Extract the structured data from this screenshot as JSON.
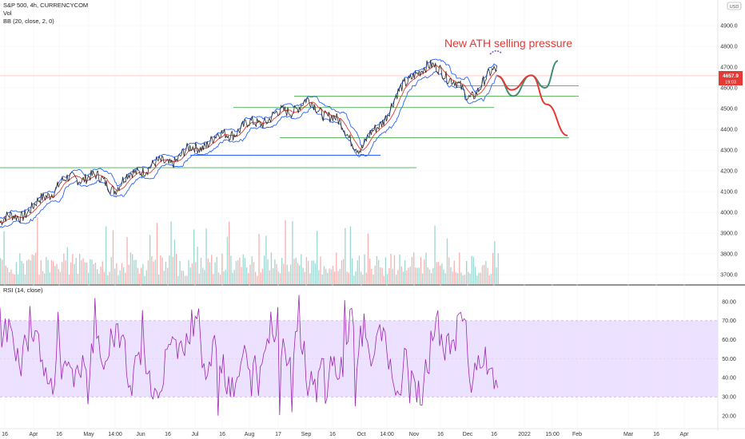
{
  "header": {
    "symbol_line": "S&P 500, 4h, CURRENCYCOM",
    "vol_label": "Vol",
    "bb_label": "BB (20, close, 2, 0)",
    "rsi_label": "RSI (14, close)",
    "scale_button": "USD"
  },
  "colors": {
    "price": "#2a2a2a",
    "bb_band": "#2962ff",
    "bb_basis": "#e53935",
    "support_line": "#4caf50",
    "support_blue": "#2962ff",
    "annotation": "#e53935",
    "proj_green": "#3e8e6e",
    "proj_red": "#e53935",
    "rsi_line": "#9c27b0",
    "rsi_band": "#e9dcff",
    "vol_up": "#26a69a",
    "vol_down": "#ef5350",
    "price_tag": "#e53935",
    "horizon_line": "#f7b5b5"
  },
  "chart_data": [
    {
      "type": "line",
      "title": "S&P 500, 4h, CURRENCYCOM",
      "ylim": [
        3650,
        5000
      ],
      "y_ticks": [
        "4900.0",
        "4800.0",
        "4700.0",
        "4600.0",
        "4500.0",
        "4400.0",
        "4300.0",
        "4200.0",
        "4100.0",
        "4000.0",
        "3900.0",
        "3800.0",
        "3700.0"
      ],
      "x_ticks": [
        "16",
        "Apr",
        "16",
        "May",
        "14:00",
        "Jun",
        "16",
        "Jul",
        "16",
        "Aug",
        "17",
        "Sep",
        "16",
        "Oct",
        "14:00",
        "Nov",
        "16",
        "Dec",
        "16",
        "2022",
        "15:00",
        "Feb",
        "Mar",
        "16",
        "Apr"
      ],
      "price_points": [
        {
          "x": "Mar",
          "y": 3950
        },
        {
          "x": "Apr",
          "y": 4020
        },
        {
          "x": "16",
          "y": 4140
        },
        {
          "x": "May",
          "y": 4180
        },
        {
          "x": "14:00",
          "y": 4120
        },
        {
          "x": "Jun",
          "y": 4210
        },
        {
          "x": "16",
          "y": 4240
        },
        {
          "x": "Jul",
          "y": 4310
        },
        {
          "x": "16",
          "y": 4370
        },
        {
          "x": "Aug",
          "y": 4420
        },
        {
          "x": "17",
          "y": 4470
        },
        {
          "x": "Sep",
          "y": 4530
        },
        {
          "x": "16",
          "y": 4460
        },
        {
          "x": "Oct",
          "y": 4300
        },
        {
          "x": "14:00",
          "y": 4480
        },
        {
          "x": "Nov",
          "y": 4680
        },
        {
          "x": "16",
          "y": 4700
        },
        {
          "x": "Dec",
          "y": 4550
        },
        {
          "x": "16",
          "y": 4690
        }
      ],
      "last_price": "4657.9",
      "last_price_time": "19:03",
      "annotation": "New ATH selling pressure",
      "support_levels": [
        4610,
        4560,
        4505,
        4360,
        4275,
        4215
      ],
      "projections": [
        {
          "name": "",
          "points": [
            {
              "x": 0,
              "y": 4657
            },
            {
              "x": 1,
              "y": 4560
            },
            {
              "x": 2,
              "y": 4660
            },
            {
              "x": 3,
              "y": 4600
            },
            {
              "x": 4,
              "y": 4730
            }
          ]
        },
        {
          "name": "",
          "points": [
            {
              "x": 0,
              "y": 4657
            },
            {
              "x": 1,
              "y": 4590
            },
            {
              "x": 2,
              "y": 4660
            },
            {
              "x": 3,
              "y": 4520
            },
            {
              "x": 4,
              "y": 4370
            }
          ]
        }
      ]
    },
    {
      "type": "line",
      "title": "RSI (14, close)",
      "ylim": [
        15,
        85
      ],
      "y_ticks": [
        "80.00",
        "70.00",
        "60.00",
        "50.00",
        "40.00",
        "30.00",
        "20.00"
      ],
      "band": [
        30,
        70
      ]
    }
  ]
}
